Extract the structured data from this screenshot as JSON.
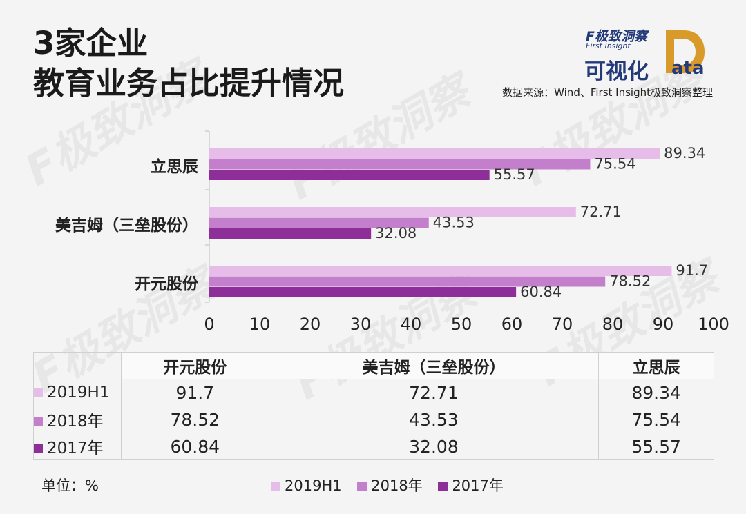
{
  "title_lines": [
    "3家企业",
    "教育业务占比提升情况"
  ],
  "logo": {
    "brand": "F极致洞察",
    "brand_en": "First Insight",
    "viz": "可视化",
    "data_word": "ata"
  },
  "source": "数据来源：Wind、First Insight极致洞察整理",
  "watermark_text": "F极致洞察",
  "unit_label": "单位：%",
  "colors": {
    "2019H1": "#e6bde8",
    "2018年": "#c47fcc",
    "2017年": "#8e2e98"
  },
  "chart_data": {
    "type": "bar",
    "orientation": "horizontal",
    "categories": [
      "立思辰",
      "美吉姆（三垒股份）",
      "开元股份"
    ],
    "series": [
      {
        "name": "2019H1",
        "values": [
          89.34,
          72.71,
          91.7
        ]
      },
      {
        "name": "2018年",
        "values": [
          75.54,
          43.53,
          78.52
        ]
      },
      {
        "name": "2017年",
        "values": [
          55.57,
          32.08,
          60.84
        ]
      }
    ],
    "xlim": [
      0,
      100
    ],
    "xticks": [
      "0",
      "10",
      "20",
      "30",
      "40",
      "50",
      "60",
      "70",
      "80",
      "90",
      "100"
    ],
    "value_labels": [
      [
        "89.34",
        "72.71",
        "91.7"
      ],
      [
        "75.54",
        "43.53",
        "78.52"
      ],
      [
        "55.57",
        "32.08",
        "60.84"
      ]
    ],
    "legend_position": "bottom"
  },
  "table": {
    "columns": [
      "开元股份",
      "美吉姆（三垒股份）",
      "立思辰"
    ],
    "rows": [
      {
        "label": "2019H1",
        "values": [
          "91.7",
          "72.71",
          "89.34"
        ]
      },
      {
        "label": "2018年",
        "values": [
          "78.52",
          "43.53",
          "75.54"
        ]
      },
      {
        "label": "2017年",
        "values": [
          "60.84",
          "32.08",
          "55.57"
        ]
      }
    ]
  },
  "legend": [
    "2019H1",
    "2018年",
    "2017年"
  ]
}
